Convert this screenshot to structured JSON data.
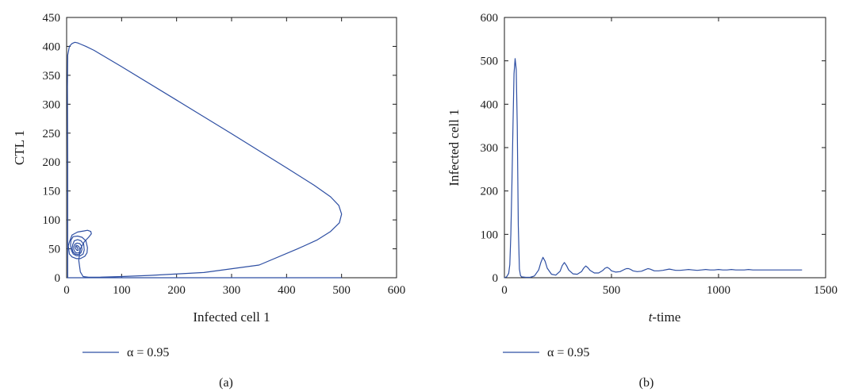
{
  "chart_data": [
    {
      "type": "line",
      "panel_label": "(a)",
      "xlabel": "Infected cell 1",
      "ylabel": "CTL 1",
      "xlim": [
        0,
        600
      ],
      "ylim": [
        0,
        450
      ],
      "xticks": [
        0,
        100,
        200,
        300,
        400,
        500,
        600
      ],
      "yticks": [
        0,
        50,
        100,
        150,
        200,
        250,
        300,
        350,
        400,
        450
      ],
      "grid": false,
      "legend_position": "bottom-left",
      "series": [
        {
          "name": "α = 0.95",
          "color": "#2e4fa3",
          "x": [
            500,
            2,
            2,
            1.5,
            2,
            5,
            10,
            15,
            20,
            25,
            35,
            50,
            100,
            200,
            300,
            400,
            450,
            480,
            495,
            500,
            496,
            480,
            455,
            420,
            350,
            250,
            150,
            100,
            60,
            40,
            30,
            25,
            22,
            25,
            32,
            40,
            45,
            44,
            38,
            32,
            20,
            10,
            5,
            3,
            5,
            10,
            18,
            25,
            33,
            37,
            38,
            35,
            28,
            20,
            12,
            8,
            7,
            9,
            12,
            18,
            25,
            30,
            32,
            31,
            26,
            20,
            14,
            11,
            10,
            12,
            16,
            21,
            26,
            28,
            27,
            24,
            19,
            15,
            13,
            13,
            15,
            18,
            22,
            24,
            24,
            22,
            19,
            17,
            16,
            16,
            18,
            20,
            21,
            21,
            20,
            19,
            18,
            18.5,
            19.5
          ],
          "y": [
            0,
            0,
            200,
            330,
            385,
            400,
            405,
            407,
            406,
            404,
            400,
            393,
            365,
            307,
            249,
            190,
            160,
            140,
            125,
            110,
            95,
            80,
            65,
            50,
            22,
            9,
            4,
            2,
            1,
            1,
            2,
            10,
            30,
            50,
            62,
            70,
            76,
            80,
            82,
            81,
            79,
            74,
            62,
            55,
            41,
            36,
            33,
            33,
            37,
            43,
            52,
            64,
            70,
            72,
            71,
            65,
            56,
            47,
            41,
            38,
            38,
            41,
            48,
            58,
            64,
            66,
            64,
            57,
            50,
            44,
            41,
            40,
            43,
            49,
            55,
            59,
            60,
            58,
            54,
            49,
            45,
            43,
            43,
            45,
            50,
            54,
            56,
            56,
            54,
            51,
            48,
            47,
            47,
            48,
            51,
            53,
            54,
            53,
            52
          ]
        }
      ]
    },
    {
      "type": "line",
      "panel_label": "(b)",
      "xlabel_prefix": "t",
      "xlabel_suffix": "-time",
      "ylabel": "Infected cell 1",
      "xlim": [
        0,
        1500
      ],
      "ylim": [
        0,
        600
      ],
      "xticks": [
        0,
        500,
        1000,
        1500
      ],
      "yticks": [
        0,
        100,
        200,
        300,
        400,
        500,
        600
      ],
      "grid": false,
      "legend_position": "bottom-left",
      "series": [
        {
          "name": "α = 0.95",
          "color": "#2e4fa3",
          "x": [
            0,
            10,
            20,
            25,
            30,
            35,
            40,
            45,
            50,
            55,
            60,
            65,
            70,
            75,
            80,
            100,
            120,
            140,
            160,
            170,
            180,
            190,
            200,
            220,
            240,
            260,
            270,
            280,
            290,
            300,
            320,
            340,
            360,
            370,
            380,
            390,
            400,
            420,
            440,
            460,
            470,
            480,
            490,
            500,
            520,
            540,
            560,
            570,
            580,
            590,
            600,
            620,
            640,
            660,
            670,
            680,
            690,
            700,
            720,
            740,
            760,
            770,
            780,
            790,
            800,
            820,
            840,
            860,
            880,
            900,
            920,
            940,
            960,
            980,
            1000,
            1020,
            1040,
            1060,
            1080,
            1100,
            1120,
            1140,
            1160,
            1180,
            1200,
            1250,
            1300,
            1350,
            1390
          ],
          "y": [
            0,
            2,
            10,
            30,
            100,
            220,
            350,
            470,
            505,
            480,
            350,
            120,
            20,
            5,
            2,
            1,
            1,
            4,
            18,
            35,
            47,
            38,
            22,
            8,
            6,
            15,
            28,
            35,
            28,
            18,
            9,
            8,
            14,
            22,
            27,
            23,
            17,
            11,
            11,
            17,
            22,
            24,
            21,
            16,
            13,
            14,
            19,
            21,
            21,
            19,
            16,
            14,
            15,
            19,
            21,
            20,
            18,
            16,
            16,
            17,
            19,
            20,
            19,
            18,
            17,
            17,
            18,
            19,
            18,
            17,
            18,
            19,
            18,
            18,
            19,
            18,
            18,
            19,
            18,
            18,
            18,
            19,
            18,
            18,
            18,
            18,
            18,
            18,
            18
          ]
        }
      ]
    }
  ]
}
